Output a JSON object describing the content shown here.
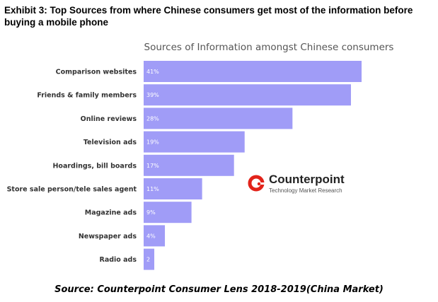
{
  "header": {
    "title": "Exhibit 3: Top Sources from where Chinese consumers get most of the information before buying a mobile phone"
  },
  "logo": {
    "name": "Counterpoint",
    "tagline": "Technology Market Research",
    "color": "#e2231a"
  },
  "footer": {
    "source": "Source: Counterpoint Consumer Lens 2018-2019(China Market)"
  },
  "colors": {
    "bar": "#a09cf7",
    "bar_label": "#ffffff",
    "category_label": "#333333"
  },
  "chart_data": {
    "type": "bar",
    "orientation": "horizontal",
    "title": "Sources of Information amongst Chinese consumers",
    "categories": [
      "Comparison websites",
      "Friends & family members",
      "Online reviews",
      "Television ads",
      "Hoardings, bill boards",
      "Store sale person/tele sales agent",
      "Magazine ads",
      "Newspaper ads",
      "Radio ads"
    ],
    "values": [
      41,
      39,
      28,
      19,
      17,
      11,
      9,
      4,
      2
    ],
    "data_labels": [
      "41%",
      "39%",
      "28%",
      "19%",
      "17%",
      "11%",
      "9%",
      "4%",
      "2"
    ],
    "xlim": [
      0,
      42
    ],
    "grid": false,
    "legend": "none"
  }
}
